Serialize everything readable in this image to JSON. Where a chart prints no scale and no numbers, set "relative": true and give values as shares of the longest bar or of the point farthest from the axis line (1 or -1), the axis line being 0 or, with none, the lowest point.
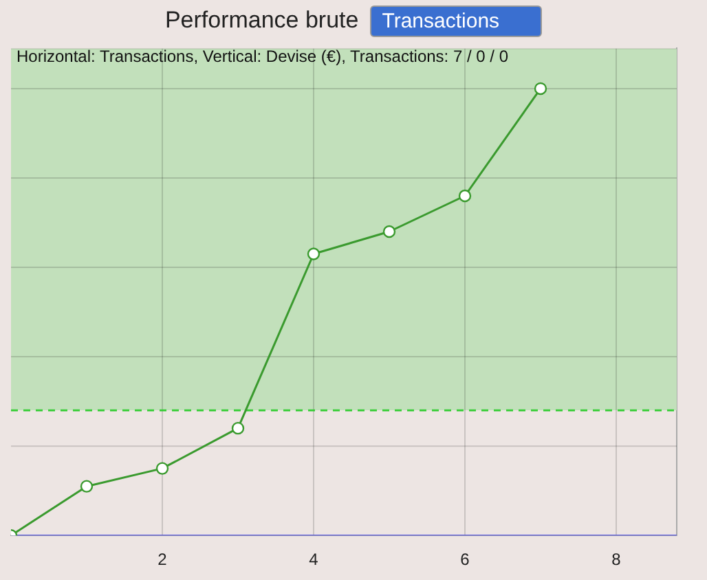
{
  "chart_data": {
    "type": "line",
    "title": "Performance brute",
    "subtitle": "Horizontal: Transactions, Vertical: Devise (€), Transactions: 7 / 0 / 0",
    "annotations": [
      "Transactions"
    ],
    "x": [
      0,
      1,
      2,
      3,
      4,
      5,
      6,
      7
    ],
    "xlim": [
      0,
      8.8
    ],
    "xticks": [
      2,
      4,
      6,
      8
    ],
    "relative": true,
    "series": [
      {
        "color": "#3a9a2e",
        "values": [
          0,
          0.11,
          0.15,
          0.24,
          0.63,
          0.68,
          0.76,
          1
        ]
      }
    ],
    "ref_lines": [
      {
        "axis": "y",
        "value": 0,
        "color": "#5a5ae0",
        "line_style": "solid"
      },
      {
        "axis": "y",
        "value": 0.28,
        "color": "#33cc33",
        "line_style": "dashed"
      }
    ],
    "bands": [
      {
        "axis": "y",
        "from": 0.28,
        "to": 1.09,
        "color": "#c2e0bb"
      }
    ],
    "marker": "circle",
    "grid": true,
    "legend": false
  }
}
